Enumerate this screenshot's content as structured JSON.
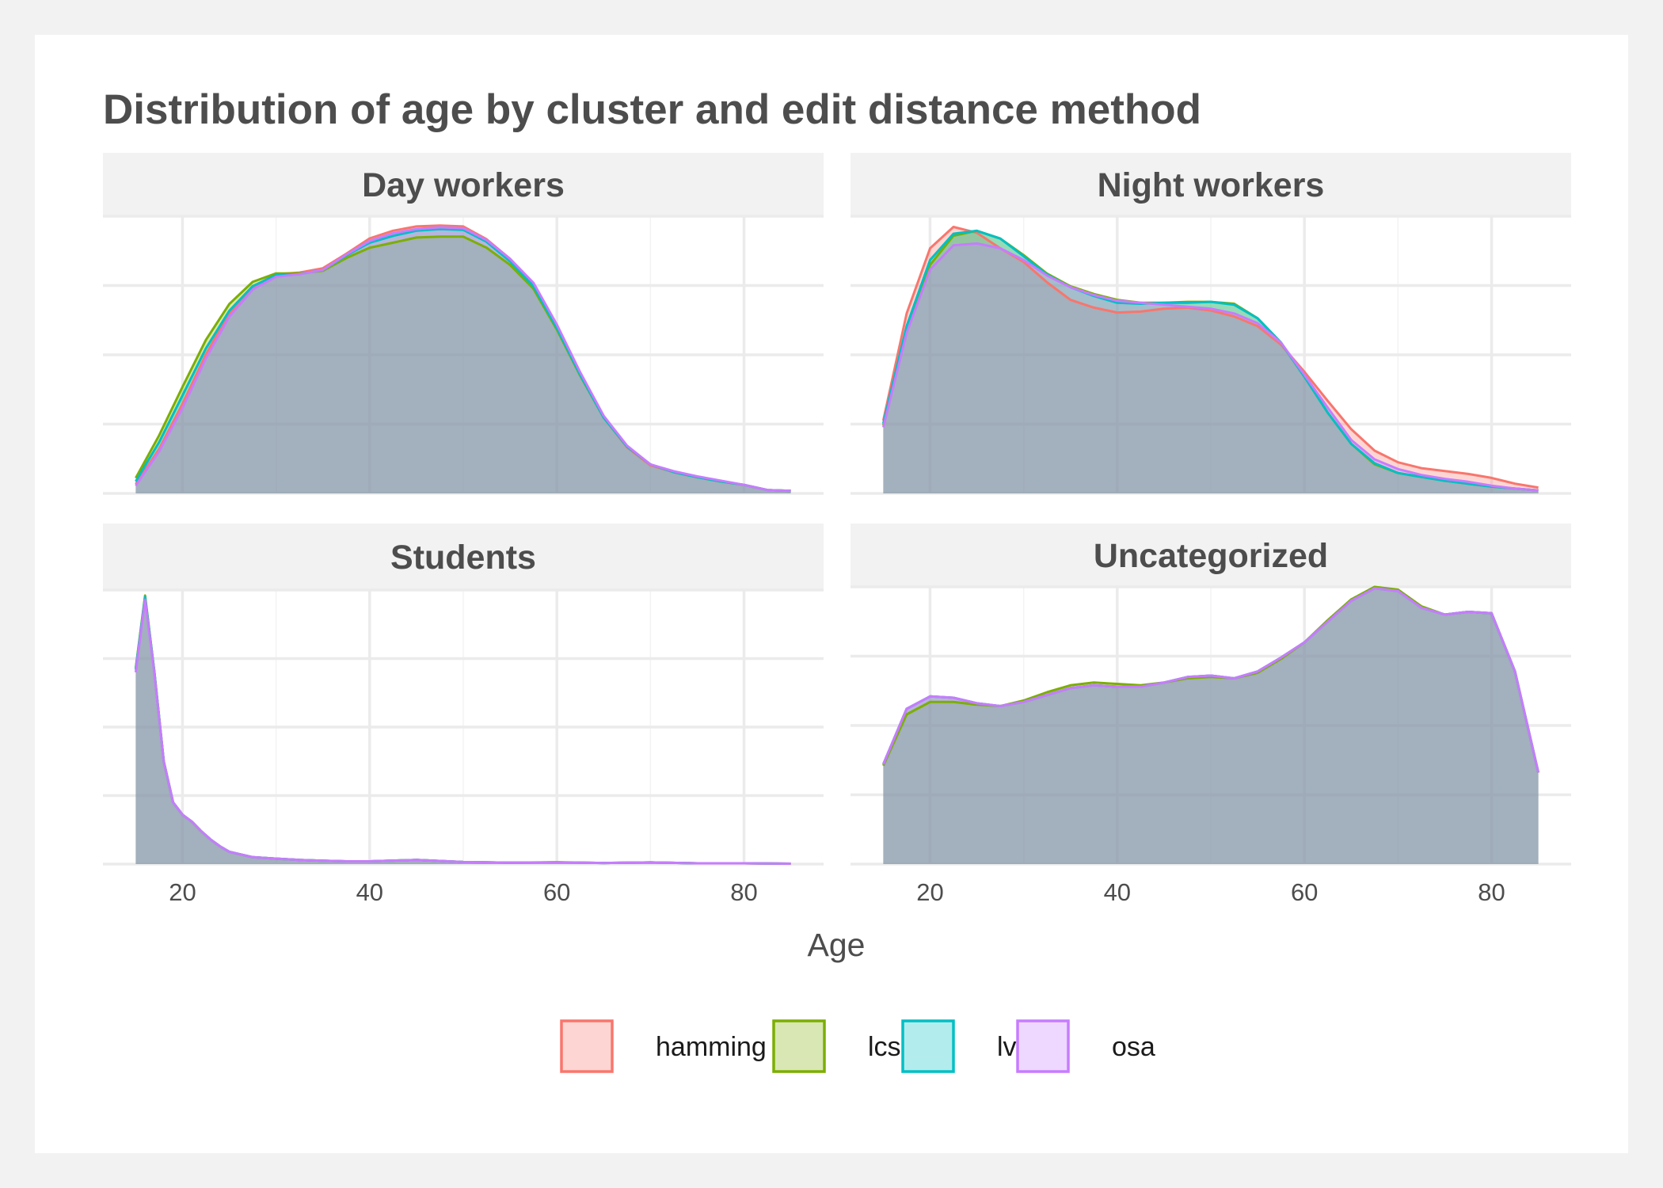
{
  "chart_data": {
    "type": "area",
    "title": "Distribution of age by cluster and edit distance method",
    "xlabel": "Age",
    "ylabel": "",
    "xlim": [
      11.5,
      88.5
    ],
    "xticks": [
      20,
      40,
      60,
      80
    ],
    "grid": true,
    "legend_position": "bottom",
    "colors": {
      "hamming": "#F8766D",
      "lcs": "#7CAE00",
      "lv": "#00BFC4",
      "osa": "#C77CFF"
    },
    "legend": [
      "hamming",
      "lcs",
      "lv",
      "osa"
    ],
    "panels": [
      {
        "title": "Day workers",
        "ylim": [
          0,
          0.0325
        ],
        "x": [
          15,
          17.5,
          20,
          22.5,
          25,
          27.5,
          30,
          32.5,
          35,
          37.5,
          40,
          42.5,
          45,
          47.5,
          50,
          52.5,
          55,
          57.5,
          60,
          62.5,
          65,
          67.5,
          70,
          72.5,
          75,
          77.5,
          80,
          82.5,
          85
        ],
        "series": [
          {
            "name": "hamming",
            "values": [
              0.0011,
              0.0052,
              0.0105,
              0.0163,
              0.0211,
              0.0242,
              0.0257,
              0.0259,
              0.0264,
              0.0281,
              0.0299,
              0.0308,
              0.0313,
              0.0314,
              0.0313,
              0.0298,
              0.0275,
              0.0245,
              0.0195,
              0.0139,
              0.0089,
              0.0054,
              0.0033,
              0.0025,
              0.0019,
              0.0014,
              0.001,
              0.0004,
              0.0003
            ]
          },
          {
            "name": "lcs",
            "values": [
              0.0018,
              0.0068,
              0.0125,
              0.018,
              0.0222,
              0.0248,
              0.0258,
              0.0258,
              0.0261,
              0.0276,
              0.0288,
              0.0294,
              0.03,
              0.0301,
              0.0301,
              0.0288,
              0.0268,
              0.024,
              0.0192,
              0.0138,
              0.0089,
              0.0055,
              0.0034,
              0.0025,
              0.0019,
              0.0014,
              0.001,
              0.0004,
              0.0003
            ]
          },
          {
            "name": "lv",
            "values": [
              0.0014,
              0.006,
              0.0115,
              0.017,
              0.0214,
              0.0243,
              0.0256,
              0.0257,
              0.0262,
              0.0279,
              0.0294,
              0.0302,
              0.0308,
              0.031,
              0.0309,
              0.0295,
              0.0272,
              0.0243,
              0.0194,
              0.0139,
              0.0089,
              0.0055,
              0.0034,
              0.0025,
              0.0019,
              0.0014,
              0.001,
              0.0004,
              0.0003
            ]
          },
          {
            "name": "osa",
            "values": [
              0.0009,
              0.0049,
              0.01,
              0.0158,
              0.0207,
              0.0239,
              0.0254,
              0.0257,
              0.0262,
              0.028,
              0.0296,
              0.0305,
              0.031,
              0.0312,
              0.0311,
              0.0297,
              0.0275,
              0.0247,
              0.0198,
              0.0142,
              0.0091,
              0.0056,
              0.0034,
              0.0026,
              0.002,
              0.0015,
              0.001,
              0.0004,
              0.0003
            ]
          }
        ]
      },
      {
        "title": "Night workers",
        "ylim": [
          0,
          0.0285
        ],
        "x": [
          15,
          17.5,
          20,
          22.5,
          25,
          27.5,
          30,
          32.5,
          35,
          37.5,
          40,
          42.5,
          45,
          47.5,
          50,
          52.5,
          55,
          57.5,
          60,
          62.5,
          65,
          67.5,
          70,
          72.5,
          75,
          77.5,
          80,
          82.5,
          85
        ],
        "series": [
          {
            "name": "hamming",
            "values": [
              0.0075,
              0.0185,
              0.0252,
              0.0274,
              0.0268,
              0.0252,
              0.0238,
              0.0217,
              0.0199,
              0.0191,
              0.0186,
              0.0187,
              0.019,
              0.0191,
              0.0188,
              0.0182,
              0.0172,
              0.0153,
              0.0125,
              0.0095,
              0.0066,
              0.0044,
              0.0032,
              0.0026,
              0.0023,
              0.002,
              0.0016,
              0.001,
              0.0006
            ]
          },
          {
            "name": "lcs",
            "values": [
              0.007,
              0.0168,
              0.0235,
              0.0265,
              0.027,
              0.0262,
              0.0245,
              0.0226,
              0.0213,
              0.0205,
              0.0199,
              0.0196,
              0.0196,
              0.0197,
              0.0197,
              0.0195,
              0.018,
              0.0155,
              0.012,
              0.0083,
              0.0051,
              0.003,
              0.0021,
              0.0017,
              0.0013,
              0.001,
              0.0007,
              0.0005,
              0.0003
            ]
          },
          {
            "name": "lv",
            "values": [
              0.0072,
              0.0172,
              0.024,
              0.0267,
              0.027,
              0.0262,
              0.0244,
              0.0225,
              0.0212,
              0.0203,
              0.0196,
              0.0195,
              0.0196,
              0.0196,
              0.0197,
              0.0194,
              0.018,
              0.0155,
              0.012,
              0.0083,
              0.0051,
              0.0031,
              0.0021,
              0.0017,
              0.0013,
              0.001,
              0.0007,
              0.0005,
              0.0003
            ]
          },
          {
            "name": "osa",
            "values": [
              0.0068,
              0.0165,
              0.023,
              0.0255,
              0.0257,
              0.0252,
              0.024,
              0.0224,
              0.0212,
              0.0204,
              0.0198,
              0.0196,
              0.0194,
              0.0192,
              0.019,
              0.0185,
              0.0175,
              0.0155,
              0.0122,
              0.0088,
              0.0055,
              0.0035,
              0.0025,
              0.0019,
              0.0015,
              0.0012,
              0.0008,
              0.0005,
              0.0003
            ]
          }
        ]
      },
      {
        "title": "Students",
        "ylim": [
          0,
          0.2
        ],
        "x": [
          15,
          16,
          17,
          18,
          19,
          20,
          21,
          22,
          23,
          24,
          25,
          27.5,
          30,
          32.5,
          35,
          37.5,
          40,
          45,
          50,
          55,
          60,
          65,
          70,
          75,
          80,
          85
        ],
        "series": [
          {
            "name": "hamming",
            "values": [
              0.142,
              0.195,
              0.14,
              0.075,
              0.045,
              0.036,
              0.031,
              0.024,
              0.018,
              0.013,
              0.009,
              0.005,
              0.004,
              0.003,
              0.0025,
              0.002,
              0.002,
              0.003,
              0.0015,
              0.001,
              0.0012,
              0.0008,
              0.0012,
              0.0006,
              0.0006,
              0.0003
            ]
          },
          {
            "name": "lcs",
            "values": [
              0.143,
              0.196,
              0.14,
              0.075,
              0.045,
              0.036,
              0.031,
              0.024,
              0.018,
              0.013,
              0.009,
              0.005,
              0.004,
              0.003,
              0.0025,
              0.002,
              0.002,
              0.003,
              0.0015,
              0.001,
              0.0014,
              0.0008,
              0.0012,
              0.0006,
              0.0006,
              0.0003
            ]
          },
          {
            "name": "lv",
            "values": [
              0.142,
              0.195,
              0.14,
              0.075,
              0.045,
              0.036,
              0.031,
              0.024,
              0.018,
              0.013,
              0.009,
              0.005,
              0.004,
              0.003,
              0.0025,
              0.002,
              0.002,
              0.003,
              0.0015,
              0.001,
              0.0012,
              0.0008,
              0.0012,
              0.0006,
              0.0006,
              0.0003
            ]
          },
          {
            "name": "osa",
            "values": [
              0.14,
              0.193,
              0.139,
              0.075,
              0.045,
              0.036,
              0.031,
              0.024,
              0.018,
              0.013,
              0.009,
              0.005,
              0.004,
              0.003,
              0.0025,
              0.002,
              0.002,
              0.003,
              0.0015,
              0.001,
              0.0012,
              0.0008,
              0.0012,
              0.0006,
              0.0006,
              0.0003
            ]
          }
        ]
      },
      {
        "title": "Uncategorized",
        "ylim": [
          0,
          0.02
        ],
        "x": [
          15,
          17.5,
          20,
          22.5,
          25,
          27.5,
          30,
          32.5,
          35,
          37.5,
          40,
          42.5,
          45,
          47.5,
          50,
          52.5,
          55,
          57.5,
          60,
          62.5,
          65,
          67.5,
          70,
          72.5,
          75,
          77.5,
          80,
          82.5,
          85
        ],
        "series": [
          {
            "name": "hamming",
            "values": [
              0.0072,
              0.0112,
              0.0121,
              0.012,
              0.0116,
              0.0114,
              0.0117,
              0.0122,
              0.0127,
              0.0129,
              0.0128,
              0.0128,
              0.0131,
              0.0135,
              0.0136,
              0.0134,
              0.0139,
              0.0149,
              0.016,
              0.0175,
              0.019,
              0.0199,
              0.0197,
              0.0185,
              0.018,
              0.0182,
              0.0181,
              0.0139,
              0.0066
            ]
          },
          {
            "name": "lcs",
            "values": [
              0.0071,
              0.0108,
              0.0117,
              0.0117,
              0.0115,
              0.0114,
              0.0118,
              0.0124,
              0.0129,
              0.0131,
              0.013,
              0.0129,
              0.0131,
              0.0134,
              0.0135,
              0.0134,
              0.0138,
              0.0148,
              0.016,
              0.0176,
              0.0191,
              0.02,
              0.0198,
              0.0186,
              0.018,
              0.0182,
              0.0181,
              0.0139,
              0.0066
            ]
          },
          {
            "name": "lv",
            "values": [
              0.0072,
              0.0112,
              0.0121,
              0.012,
              0.0116,
              0.0114,
              0.0117,
              0.0122,
              0.0127,
              0.0129,
              0.0128,
              0.0128,
              0.0131,
              0.0135,
              0.0136,
              0.0134,
              0.0139,
              0.0149,
              0.016,
              0.0175,
              0.019,
              0.0199,
              0.0197,
              0.0185,
              0.018,
              0.0182,
              0.0181,
              0.0139,
              0.0066
            ]
          },
          {
            "name": "osa",
            "values": [
              0.0072,
              0.0112,
              0.0121,
              0.012,
              0.0116,
              0.0114,
              0.0117,
              0.0122,
              0.0127,
              0.0129,
              0.0128,
              0.0128,
              0.0131,
              0.0135,
              0.0136,
              0.0134,
              0.0139,
              0.0149,
              0.016,
              0.0175,
              0.019,
              0.0199,
              0.0197,
              0.0185,
              0.018,
              0.0182,
              0.0181,
              0.0139,
              0.0066
            ]
          }
        ]
      }
    ]
  }
}
